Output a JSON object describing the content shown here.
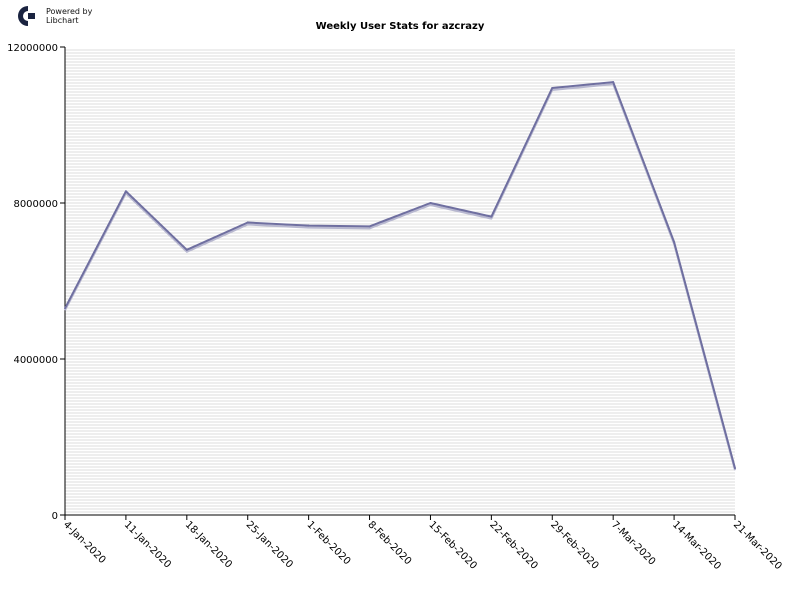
{
  "brand": {
    "line1": "Powered by",
    "line2": "Libchart",
    "logo_icon": "libchart-logo-icon"
  },
  "colors": {
    "line": "#6f6fa0",
    "line_shadow": "#b8b8d0",
    "grid": "#dddddd",
    "axis": "#000000"
  },
  "chart_data": {
    "type": "line",
    "title": "Weekly User Stats for azcrazy",
    "xlabel": "",
    "ylabel": "",
    "ylim": [
      0,
      12000000
    ],
    "yticks": [
      "0",
      "4000000",
      "8000000",
      "12000000"
    ],
    "yticks_values": [
      0,
      4000000,
      8000000,
      12000000
    ],
    "grid": true,
    "categories": [
      "4-Jan-2020",
      "11-Jan-2020",
      "18-Jan-2020",
      "25-Jan-2020",
      "1-Feb-2020",
      "8-Feb-2020",
      "15-Feb-2020",
      "22-Feb-2020",
      "29-Feb-2020",
      "7-Mar-2020",
      "14-Mar-2020",
      "21-Mar-2020"
    ],
    "values": [
      5300000,
      8300000,
      6800000,
      7500000,
      7420000,
      7400000,
      8000000,
      7650000,
      10950000,
      11100000,
      7000000,
      1200000
    ]
  }
}
